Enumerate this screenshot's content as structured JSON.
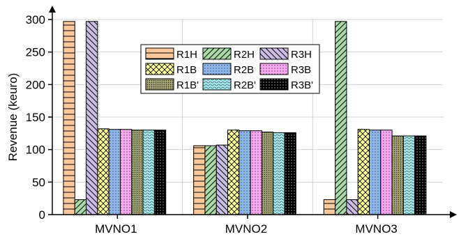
{
  "chart_data": {
    "type": "bar",
    "title": "",
    "xlabel": "",
    "ylabel": "Revenue (keuro)",
    "ylim": [
      0,
      300
    ],
    "yticks": [
      "0",
      "50",
      "100",
      "150",
      "200",
      "250",
      "300"
    ],
    "grid": true,
    "legend_position": "top-center",
    "categories": [
      "MVNO1",
      "MVNO2",
      "MVNO3"
    ],
    "series": [
      {
        "name": "R1H",
        "values": [
          297,
          106,
          23
        ],
        "color": "#fbc89c",
        "pattern": "horizontal-lines"
      },
      {
        "name": "R2H",
        "values": [
          23,
          106,
          297
        ],
        "color": "#a8dca4",
        "pattern": "diagonal-lines"
      },
      {
        "name": "R3H",
        "values": [
          297,
          107,
          23
        ],
        "color": "#cbbde6",
        "pattern": "backslash-lines"
      },
      {
        "name": "R1B",
        "values": [
          132,
          130,
          131
        ],
        "color": "#ffff99",
        "pattern": "crosshatch"
      },
      {
        "name": "R2B",
        "values": [
          131,
          129,
          130
        ],
        "color": "#8fb6ea",
        "pattern": "dots"
      },
      {
        "name": "R3B",
        "values": [
          131,
          129,
          130
        ],
        "color": "#f8a8f0",
        "pattern": "dots"
      },
      {
        "name": "R1B'",
        "values": [
          130,
          127,
          121
        ],
        "color": "#a0a070",
        "pattern": "dense-dots"
      },
      {
        "name": "R2B'",
        "values": [
          130,
          126,
          121
        ],
        "color": "#a0e6ea",
        "pattern": "wavy-lines"
      },
      {
        "name": "R3B'",
        "values": [
          130,
          126,
          121
        ],
        "color": "#000000",
        "pattern": "dots"
      }
    ]
  }
}
